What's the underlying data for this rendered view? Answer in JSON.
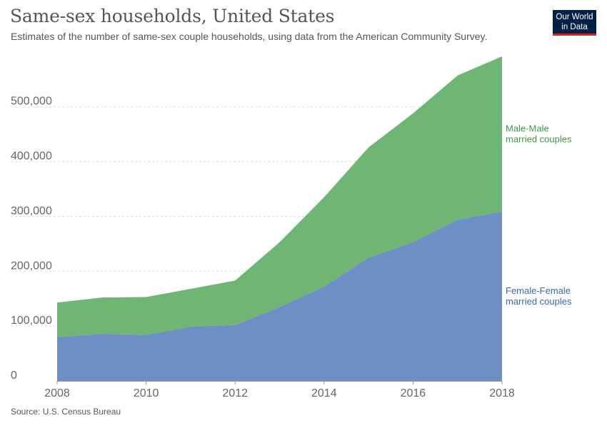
{
  "header": {
    "title": "Same-sex households, United States",
    "subtitle": "Estimates of the number of same-sex couple households, using data from the American Community Survey.",
    "logo_line1": "Our World",
    "logo_line2": "in Data"
  },
  "footer": {
    "source": "Source: U.S. Census Bureau"
  },
  "colors": {
    "female_female": "#6e8fc3",
    "male_male": "#6fb573",
    "female_female_label": "#3f67ad",
    "male_male_label": "#3d9a46"
  },
  "chart_data": {
    "type": "area",
    "stacked": true,
    "x": [
      2008,
      2009,
      2010,
      2011,
      2012,
      2013,
      2014,
      2015,
      2016,
      2017,
      2018
    ],
    "series": [
      {
        "name": "Female-Female married couples",
        "label_lines": [
          "Female-Female",
          "married couples"
        ],
        "values": [
          80000,
          86000,
          84000,
          99000,
          102000,
          135000,
          172000,
          225000,
          253000,
          294000,
          309000
        ]
      },
      {
        "name": "Male-Male married couples",
        "label_lines": [
          "Male-Male",
          "married couples"
        ],
        "values": [
          63000,
          66000,
          69000,
          69000,
          81000,
          118000,
          163000,
          201000,
          235000,
          263000,
          283000
        ]
      }
    ],
    "ylim": [
      0,
      592000
    ],
    "yticks": [
      0,
      100000,
      200000,
      300000,
      400000,
      500000
    ],
    "ytick_labels": [
      "0",
      "100,000",
      "200,000",
      "300,000",
      "400,000",
      "500,000"
    ],
    "xticks": [
      2008,
      2010,
      2012,
      2014,
      2016,
      2018
    ],
    "xtick_labels": [
      "2008",
      "2010",
      "2012",
      "2014",
      "2016",
      "2018"
    ],
    "grid": true,
    "legend": "inline-right"
  }
}
